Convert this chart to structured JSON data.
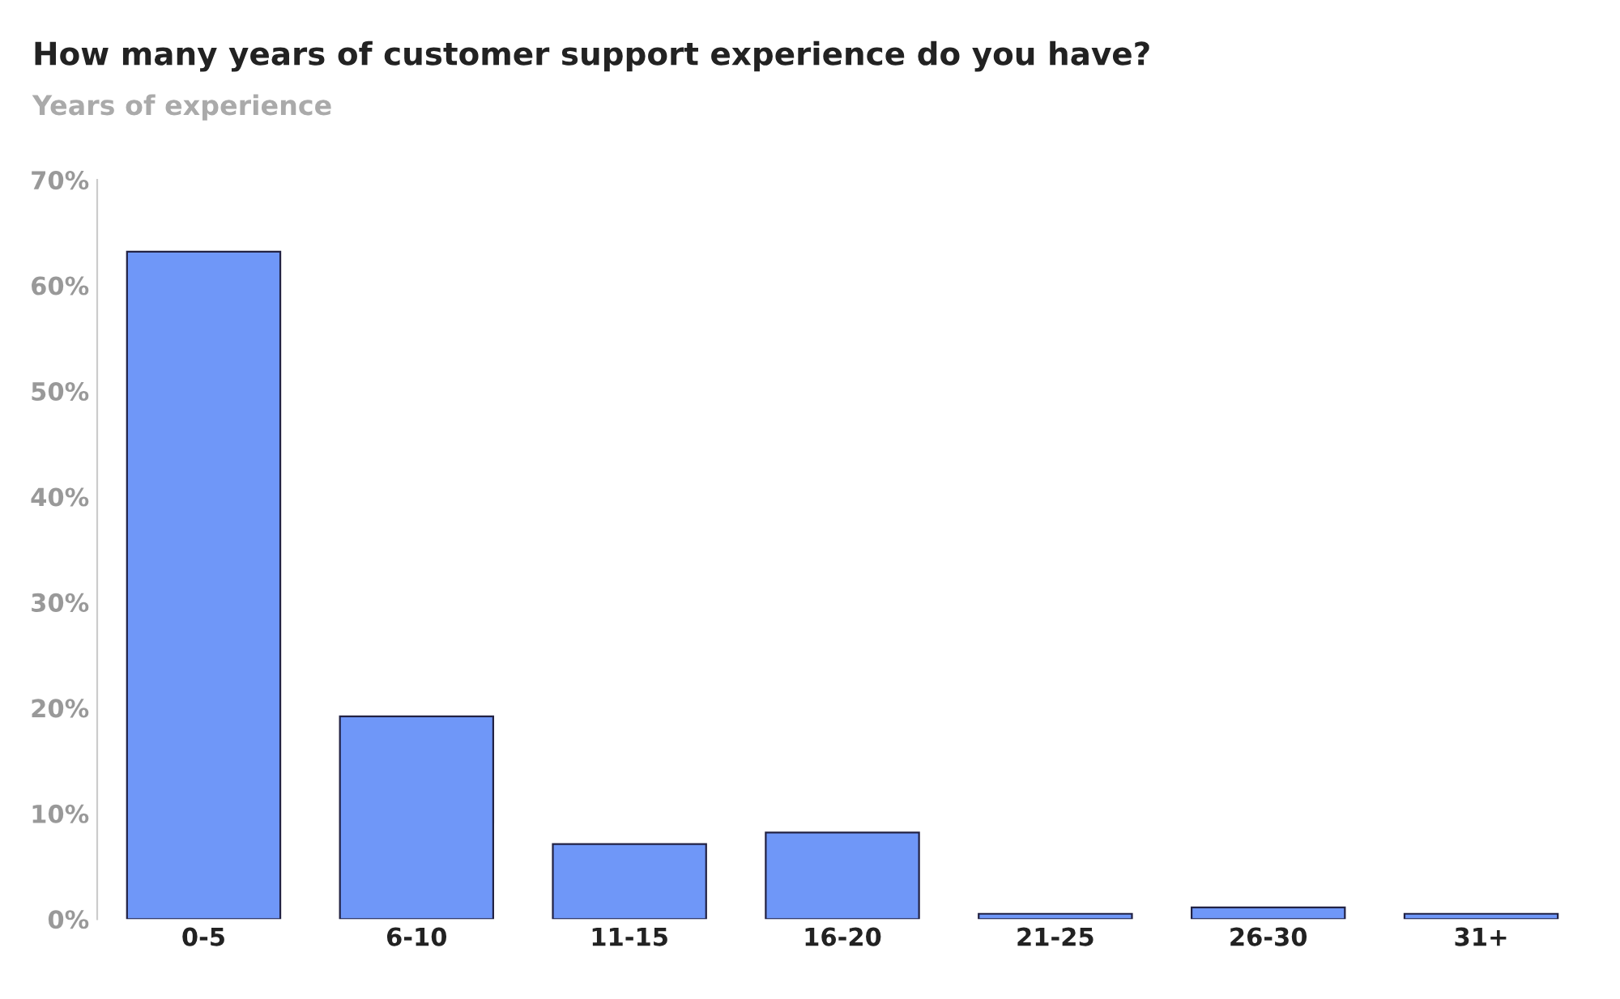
{
  "chart_data": {
    "type": "bar",
    "title": "How many years of customer support experience do you have?",
    "subtitle": "Years of experience",
    "categories": [
      "0-5",
      "6-10",
      "11-15",
      "16-20",
      "21-25",
      "26-30",
      "31+"
    ],
    "values": [
      63.2,
      19.2,
      7.1,
      8.2,
      0.5,
      1.1,
      0.5
    ],
    "color": "#6f97f8",
    "ylim": [
      0,
      70
    ],
    "yticks": [
      {
        "value": 0,
        "label": "0%"
      },
      {
        "value": 10,
        "label": "10%"
      },
      {
        "value": 20,
        "label": "20%"
      },
      {
        "value": 30,
        "label": "30%"
      },
      {
        "value": 40,
        "label": "40%"
      },
      {
        "value": 50,
        "label": "50%"
      },
      {
        "value": 60,
        "label": "60%"
      },
      {
        "value": 70,
        "label": "70%"
      }
    ],
    "grid": false,
    "legend": false
  }
}
